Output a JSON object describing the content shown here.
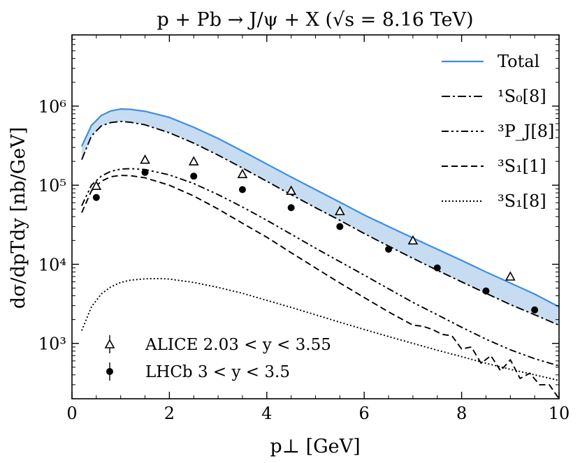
{
  "chart_data": {
    "type": "line",
    "title": "p + Pb → J/ψ + X  (√s = 8.16 TeV)",
    "xlabel": "p⊥ [GeV]",
    "ylabel": "dσ/dpTdy [nb/GeV]",
    "xlim": [
      0,
      10
    ],
    "ylim_log10": [
      2.3,
      6.9
    ],
    "yscale": "log",
    "x_ticks": [
      0,
      2,
      4,
      6,
      8,
      10
    ],
    "y_ticks": [
      {
        "value": 1000,
        "label": "10³"
      },
      {
        "value": 10000,
        "label": "10⁴"
      },
      {
        "value": 100000,
        "label": "10⁵"
      },
      {
        "value": 1000000,
        "label": "10⁶"
      }
    ],
    "grid": false,
    "legend_position": "top-right",
    "series": [
      {
        "name": "Total",
        "style": "solid",
        "color": "#3a8ee6",
        "x": [
          0.2,
          0.4,
          0.6,
          0.8,
          1.0,
          1.2,
          1.5,
          2.0,
          2.5,
          3.0,
          3.5,
          4.0,
          4.5,
          5.0,
          5.5,
          6.0,
          6.5,
          7.0,
          7.5,
          8.0,
          8.5,
          9.0,
          9.5,
          10.0
        ],
        "y": [
          310000,
          570000,
          760000,
          870000,
          920000,
          910000,
          860000,
          720000,
          540000,
          390000,
          270000,
          185000,
          127000,
          88000,
          61000,
          42000,
          30000,
          21500,
          15500,
          11200,
          8000,
          5800,
          4200,
          2900
        ]
      },
      {
        "name": "¹S₀[8]",
        "style": "dashdot",
        "color": "#000000",
        "x": [
          0.2,
          0.4,
          0.6,
          0.8,
          1.0,
          1.2,
          1.5,
          2.0,
          2.5,
          3.0,
          3.5,
          4.0,
          4.5,
          5.0,
          5.5,
          6.0,
          6.5,
          7.0,
          7.5,
          8.0,
          8.5,
          9.0,
          9.5,
          10.0
        ],
        "y": [
          210000,
          420000,
          560000,
          620000,
          640000,
          625000,
          580000,
          460000,
          340000,
          240000,
          165000,
          112000,
          76000,
          52000,
          36000,
          24500,
          17000,
          11900,
          8400,
          6000,
          4300,
          3100,
          2300,
          1700
        ]
      },
      {
        "name": "³P_J[8]",
        "style": "dashdotdot",
        "color": "#000000",
        "x": [
          0.2,
          0.4,
          0.6,
          0.8,
          1.0,
          1.2,
          1.5,
          2.0,
          2.5,
          3.0,
          3.5,
          4.0,
          4.5,
          5.0,
          5.5,
          6.0,
          6.5,
          7.0,
          7.5,
          8.0,
          8.5,
          9.0,
          9.5,
          10.0
        ],
        "y": [
          55000,
          100000,
          130000,
          150000,
          160000,
          162000,
          158000,
          135000,
          105000,
          76000,
          53000,
          36000,
          24000,
          16000,
          10800,
          7300,
          4900,
          3300,
          2300,
          1600,
          1130,
          830,
          640,
          520
        ]
      },
      {
        "name": "³S₁[1]",
        "style": "dashed",
        "color": "#000000",
        "x": [
          0.2,
          0.4,
          0.6,
          0.8,
          1.0,
          1.2,
          1.5,
          2.0,
          2.5,
          3.0,
          3.5,
          4.0,
          4.5,
          5.0,
          5.5,
          6.0,
          6.5,
          7.0,
          7.2,
          7.4,
          7.6,
          7.8,
          8.0,
          8.2,
          8.4,
          8.6,
          8.8,
          9.0,
          9.2,
          9.4,
          9.6,
          9.8,
          10.0
        ],
        "y": [
          45000,
          85000,
          112000,
          128000,
          133000,
          132000,
          124000,
          100000,
          73000,
          50000,
          33000,
          22000,
          14000,
          9000,
          5800,
          3800,
          2500,
          1700,
          1650,
          1500,
          1300,
          1250,
          850,
          900,
          560,
          700,
          450,
          620,
          360,
          420,
          300,
          300,
          200
        ]
      },
      {
        "name": "³S₁[8]",
        "style": "dotted",
        "color": "#000000",
        "x": [
          0.2,
          0.4,
          0.6,
          0.8,
          1.0,
          1.2,
          1.5,
          1.8,
          2.0,
          2.5,
          3.0,
          3.5,
          4.0,
          4.5,
          5.0,
          5.5,
          6.0,
          6.5,
          7.0,
          7.5,
          8.0,
          8.5,
          9.0,
          9.5,
          10.0
        ],
        "y": [
          1450,
          2900,
          4200,
          5200,
          5900,
          6300,
          6550,
          6600,
          6500,
          5900,
          5100,
          4300,
          3500,
          2850,
          2300,
          1850,
          1500,
          1220,
          1000,
          820,
          680,
          560,
          470,
          400,
          340
        ]
      }
    ],
    "band": {
      "between": [
        "Total",
        "¹S₀[8]"
      ],
      "color": "#c7dcf0"
    },
    "data_points": [
      {
        "name": "ALICE",
        "legend_label": "ALICE  2.03 < y < 3.55",
        "marker": "open-triangle",
        "x": [
          0.5,
          1.5,
          2.5,
          3.5,
          4.5,
          5.5,
          7.0,
          9.0
        ],
        "y": [
          98000,
          210000,
          200000,
          138000,
          85000,
          47000,
          20000,
          7000
        ]
      },
      {
        "name": "LHCb",
        "legend_label": "LHCb  3 < y < 3.5",
        "marker": "filled-circle",
        "x": [
          0.5,
          1.5,
          2.5,
          3.5,
          4.5,
          5.5,
          6.5,
          7.5,
          8.5,
          9.5
        ],
        "y": [
          70000,
          145000,
          130000,
          88000,
          52000,
          30000,
          15500,
          9000,
          4600,
          2650
        ]
      }
    ]
  }
}
